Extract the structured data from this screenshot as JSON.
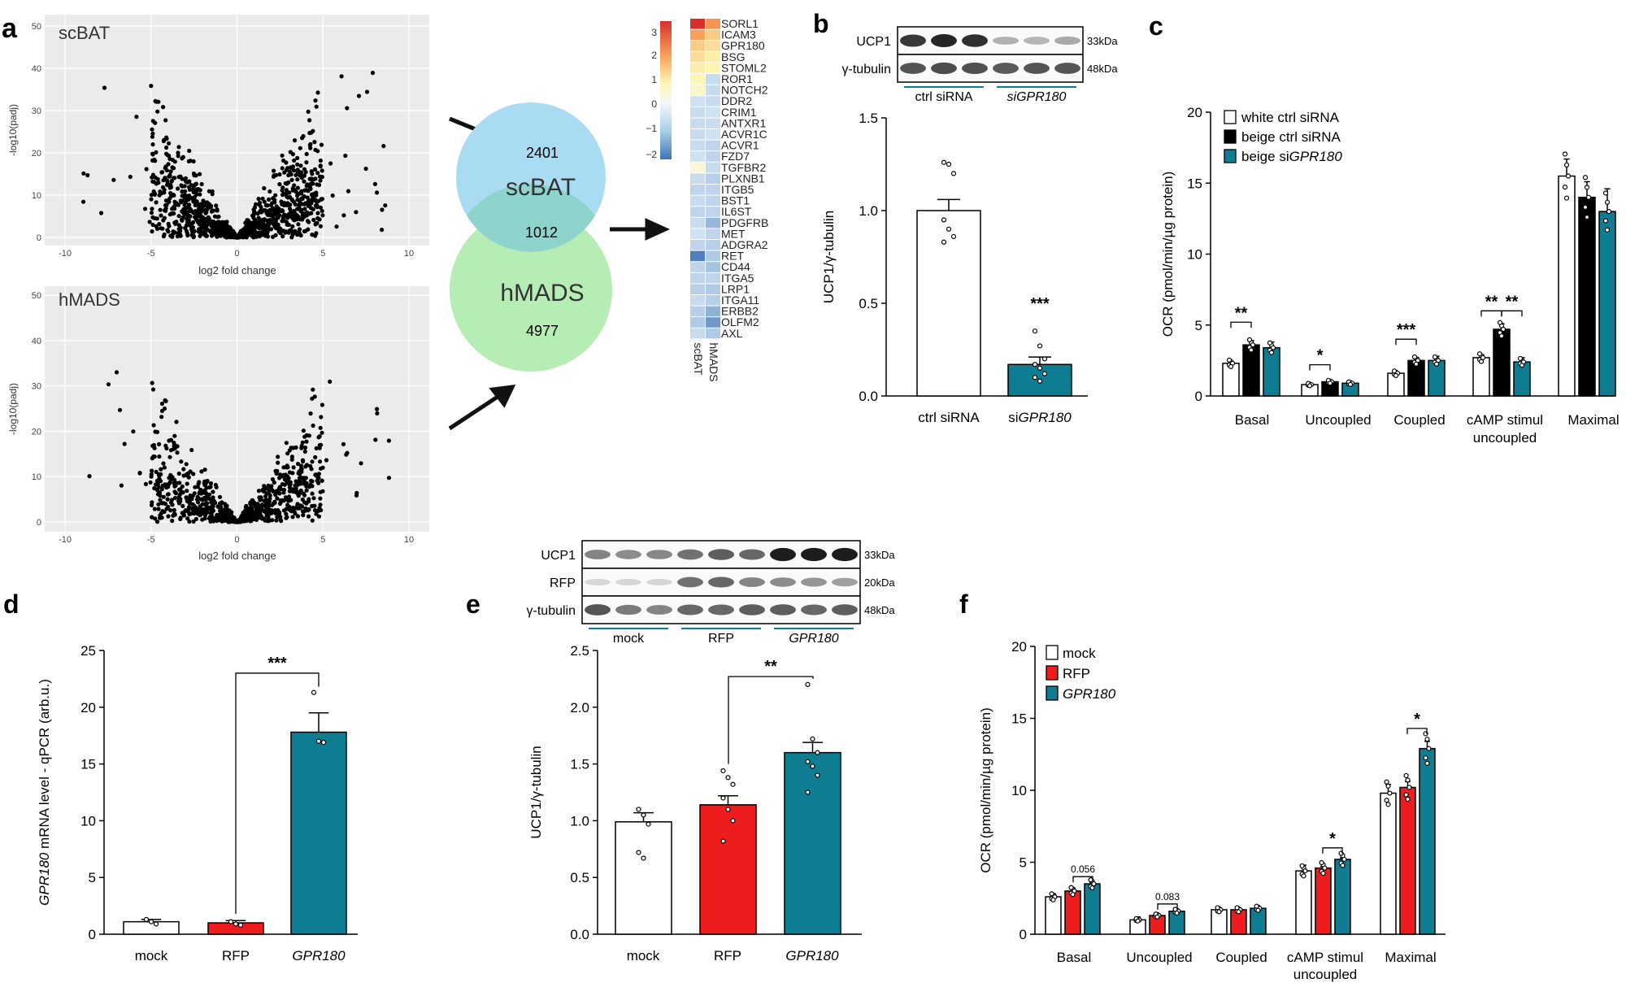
{
  "panel_letters": {
    "a": "a",
    "b": "b",
    "c": "c",
    "d": "d",
    "e": "e",
    "f": "f"
  },
  "colors": {
    "white": "#ffffff",
    "black": "#000000",
    "teal": "#0e7d91",
    "red": "#ee1c1c",
    "venn_blue": "#a9dcf2",
    "venn_green": "#b6edb4",
    "venn_overlap": "#8fd3cd",
    "plot_bg": "#ebebeb"
  },
  "volcano": {
    "xlabel": "log2 fold change",
    "ylabel": "-log10(padj)",
    "xticks": [
      "-10",
      "-5",
      "0",
      "5",
      "10"
    ],
    "plots": [
      {
        "label": "scBAT",
        "yticks": [
          "0",
          "10",
          "20",
          "30",
          "40",
          "50"
        ]
      },
      {
        "label": "hMADS",
        "yticks": [
          "0",
          "10",
          "20",
          "30",
          "40",
          "50"
        ]
      }
    ]
  },
  "venn": {
    "top_label": "scBAT",
    "top_count": "2401",
    "overlap_count": "1012",
    "bottom_label": "hMADS",
    "bottom_count": "4977"
  },
  "heatmap": {
    "scale_ticks": [
      "3",
      "2",
      "1",
      "0",
      "−1",
      "−2"
    ],
    "columns": [
      "scBAT",
      "hMADS"
    ],
    "genes": [
      "SORL1",
      "ICAM3",
      "GPR180",
      "BSG",
      "STOML2",
      "ROR1",
      "NOTCH2",
      "DDR2",
      "CRIM1",
      "ANTXR1",
      "ACVR1C",
      "ACVR1",
      "FZD7",
      "TGFBR2",
      "PLXNB1",
      "ITGB5",
      "BST1",
      "IL6ST",
      "PDGFRB",
      "MET",
      "ADGRA2",
      "RET",
      "CD44",
      "ITGA5",
      "LRP1",
      "ITGA11",
      "ERBB2",
      "OLFM2",
      "AXL"
    ],
    "values": [
      [
        3.2,
        1.6
      ],
      [
        1.4,
        0.9
      ],
      [
        0.9,
        0.7
      ],
      [
        0.7,
        0.5
      ],
      [
        0.5,
        0.4
      ],
      [
        0.4,
        -0.3
      ],
      [
        0.3,
        -0.3
      ],
      [
        -0.2,
        -0.3
      ],
      [
        -0.3,
        -0.2
      ],
      [
        -0.3,
        -0.3
      ],
      [
        -0.3,
        -0.2
      ],
      [
        -0.3,
        -0.4
      ],
      [
        -0.2,
        -0.4
      ],
      [
        0.2,
        -0.3
      ],
      [
        -0.3,
        -0.5
      ],
      [
        -0.4,
        -0.4
      ],
      [
        -0.3,
        -0.4
      ],
      [
        -0.4,
        -0.4
      ],
      [
        -0.3,
        -0.9
      ],
      [
        -0.2,
        -0.4
      ],
      [
        -0.4,
        -0.5
      ],
      [
        -1.8,
        -0.6
      ],
      [
        -0.4,
        -0.7
      ],
      [
        -0.4,
        -0.4
      ],
      [
        -0.5,
        -0.6
      ],
      [
        -0.3,
        -0.5
      ],
      [
        -0.5,
        -1.0
      ],
      [
        -0.6,
        -1.4
      ],
      [
        -0.3,
        -0.6
      ]
    ]
  },
  "blot_b": {
    "rows": [
      {
        "label": "UCP1",
        "kda": "33kDa"
      },
      {
        "label": "γ-tubulin",
        "kda": "48kDa"
      }
    ],
    "groups": [
      "ctrl siRNA",
      "siGPR180"
    ]
  },
  "blot_e": {
    "rows": [
      {
        "label": "UCP1",
        "kda": "33kDa"
      },
      {
        "label": "RFP",
        "kda": "20kDa"
      },
      {
        "label": "γ-tubulin",
        "kda": "48kDa"
      }
    ],
    "groups": [
      "mock",
      "RFP",
      "GPR180"
    ]
  },
  "chart_data": [
    {
      "panel": "b",
      "type": "bar",
      "categories": [
        "ctrl siRNA",
        "siGPR180"
      ],
      "values": [
        1.0,
        0.17
      ],
      "errors": [
        0.06,
        0.04
      ],
      "points": [
        [
          1.26,
          1.25,
          1.2,
          0.95,
          0.9,
          0.86,
          0.83
        ],
        [
          0.35,
          0.27,
          0.2,
          0.17,
          0.15,
          0.12,
          0.1,
          0.08
        ]
      ],
      "ylabel": "UCP1/γ-tubulin",
      "ylim": [
        0,
        1.5
      ],
      "yticks": [
        0,
        0.5,
        1.0,
        1.5
      ],
      "annotations": [
        "***"
      ]
    },
    {
      "panel": "c",
      "type": "bar",
      "categories": [
        "Basal",
        "Uncoupled",
        "Coupled",
        "cAMP stimul uncoupled",
        "Maximal"
      ],
      "series": [
        {
          "name": "white ctrl siRNA",
          "values": [
            2.3,
            0.8,
            1.6,
            2.7,
            15.5
          ],
          "errors": [
            0.1,
            0.1,
            0.1,
            0.2,
            1.2
          ]
        },
        {
          "name": "beige ctrl siRNA",
          "values": [
            3.6,
            1.0,
            2.5,
            4.7,
            14.0
          ],
          "errors": [
            0.3,
            0.1,
            0.2,
            0.4,
            1.1
          ]
        },
        {
          "name": "beige siGPR180",
          "values": [
            3.4,
            0.9,
            2.5,
            2.4,
            13.0
          ],
          "errors": [
            0.4,
            0.1,
            0.3,
            0.3,
            1.6
          ]
        }
      ],
      "ylabel": "OCR (pmol/min/µg protein)",
      "ylim": [
        0,
        20
      ],
      "yticks": [
        0,
        5,
        10,
        15,
        20
      ],
      "annotations": [
        "**",
        "*",
        "***",
        "**",
        "**"
      ]
    },
    {
      "panel": "d",
      "type": "bar",
      "categories": [
        "mock",
        "RFP",
        "GPR180"
      ],
      "values": [
        1.1,
        1.0,
        17.8
      ],
      "errors": [
        0.2,
        0.2,
        1.7
      ],
      "points": [
        [
          1.3,
          1.1,
          0.9
        ],
        [
          1.1,
          0.9,
          0.8
        ],
        [
          21.3,
          17.0,
          16.9
        ]
      ],
      "ylabel": "GPR180 mRNA level - qPCR (arb.u.)",
      "ylim": [
        0,
        25
      ],
      "yticks": [
        0,
        5,
        10,
        15,
        20,
        25
      ],
      "annotations": [
        "***"
      ]
    },
    {
      "panel": "e",
      "type": "bar",
      "categories": [
        "mock",
        "RFP",
        "GPR180"
      ],
      "values": [
        0.99,
        1.14,
        1.6
      ],
      "errors": [
        0.08,
        0.08,
        0.09
      ],
      "points": [
        [
          1.1,
          1.05,
          0.97,
          0.72,
          0.67
        ],
        [
          1.44,
          1.38,
          1.32,
          1.2,
          1.1,
          1.0,
          0.82
        ],
        [
          2.2,
          1.72,
          1.6,
          1.52,
          1.48,
          1.4,
          1.25
        ]
      ],
      "ylabel": "UCP1/γ-tubulin",
      "ylim": [
        0,
        2.5
      ],
      "yticks": [
        0,
        0.5,
        1.0,
        1.5,
        2.0,
        2.5
      ],
      "annotations": [
        "**"
      ]
    },
    {
      "panel": "f",
      "type": "bar",
      "categories": [
        "Basal",
        "Uncoupled",
        "Coupled",
        "cAMP stimul uncoupled",
        "Maximal"
      ],
      "series": [
        {
          "name": "mock",
          "values": [
            2.6,
            1.0,
            1.7,
            4.4,
            9.8
          ],
          "errors": [
            0.2,
            0.2,
            0.1,
            0.4,
            0.6
          ]
        },
        {
          "name": "RFP",
          "values": [
            3.0,
            1.3,
            1.7,
            4.6,
            10.2
          ],
          "errors": [
            0.2,
            0.1,
            0.1,
            0.1,
            0.4
          ]
        },
        {
          "name": "GPR180",
          "values": [
            3.5,
            1.6,
            1.8,
            5.2,
            12.9
          ],
          "errors": [
            0.1,
            0.1,
            0.1,
            0.1,
            0.5
          ]
        }
      ],
      "ylabel": "OCR (pmol/min/µg protein)",
      "ylim": [
        0,
        20
      ],
      "yticks": [
        0,
        5,
        10,
        15,
        20
      ],
      "annotations": [
        "0.056",
        "0.083",
        "*",
        "*"
      ]
    }
  ],
  "labels": {
    "b_ylabel": "UCP1/γ-tubulin",
    "b_sig": "***",
    "c_ylabel": "OCR (pmol/min/µg protein)",
    "c_legend": [
      "white ctrl siRNA",
      "beige ctrl siRNA",
      "beige siGPR180"
    ],
    "c_sig": [
      "**",
      "*",
      "***",
      "**",
      "**"
    ],
    "c_cats": [
      "Basal",
      "Uncoupled",
      "Coupled",
      "cAMP stimul",
      "uncoupled",
      "Maximal"
    ],
    "d_ylabel": "GPR180 mRNA level - qPCR (arb.u.)",
    "d_sig": "***",
    "e_ylabel": "UCP1/γ-tubulin",
    "e_sig": "**",
    "f_ylabel": "OCR (pmol/min/µg protein)",
    "f_legend": [
      "mock",
      "RFP",
      "GPR180"
    ],
    "f_sig": [
      "0.056",
      "0.083",
      "*",
      "*"
    ],
    "f_cats": [
      "Basal",
      "Uncoupled",
      "Coupled",
      "cAMP stimul",
      "uncoupled",
      "Maximal"
    ]
  }
}
